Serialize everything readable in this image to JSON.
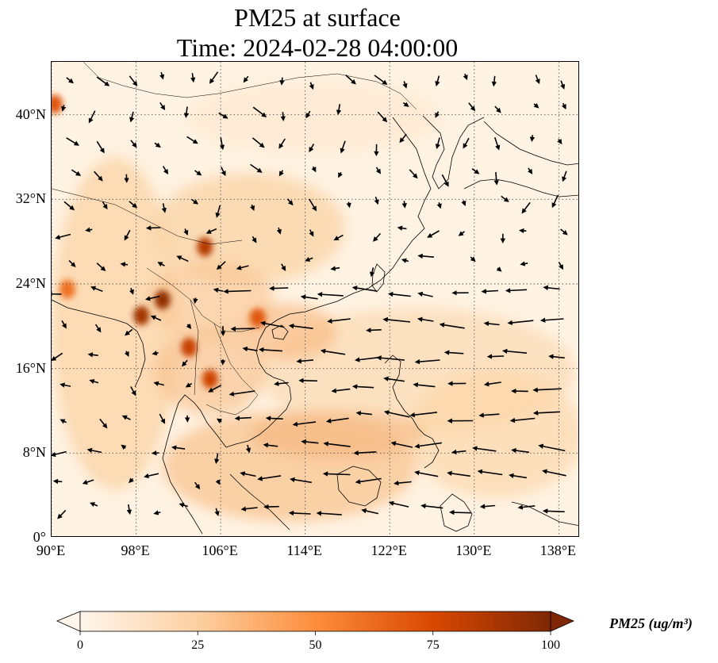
{
  "title": {
    "line1": "PM25 at surface",
    "line2": "Time: 2024-02-28 04:00:00"
  },
  "map": {
    "extent": {
      "lon_min": 90,
      "lon_max": 140,
      "lat_min": 0,
      "lat_max": 45
    },
    "lat_ticks": [
      {
        "value": 0,
        "label": "0°"
      },
      {
        "value": 8,
        "label": "8°N"
      },
      {
        "value": 16,
        "label": "16°N"
      },
      {
        "value": 24,
        "label": "24°N"
      },
      {
        "value": 32,
        "label": "32°N"
      },
      {
        "value": 40,
        "label": "40°N"
      }
    ],
    "lon_ticks": [
      {
        "value": 90,
        "label": "90°E"
      },
      {
        "value": 98,
        "label": "98°E"
      },
      {
        "value": 106,
        "label": "106°E"
      },
      {
        "value": 114,
        "label": "114°E"
      },
      {
        "value": 122,
        "label": "122°E"
      },
      {
        "value": 130,
        "label": "130°E"
      },
      {
        "value": 138,
        "label": "138°E"
      }
    ],
    "gridlines": "dotted",
    "colormap": [
      "#fff5eb",
      "#fdd0a2",
      "#fd8d3c",
      "#d94801",
      "#7f2704"
    ],
    "hotspots": [
      {
        "lon": 104.5,
        "lat": 27.5,
        "value": 85
      },
      {
        "lon": 100.5,
        "lat": 22.5,
        "value": 95
      },
      {
        "lon": 98.5,
        "lat": 21.0,
        "value": 90
      },
      {
        "lon": 103.0,
        "lat": 18.0,
        "value": 80
      },
      {
        "lon": 105.0,
        "lat": 15.0,
        "value": 78
      },
      {
        "lon": 90.3,
        "lat": 41.0,
        "value": 70
      },
      {
        "lon": 109.5,
        "lat": 20.8,
        "value": 70
      },
      {
        "lon": 91.5,
        "lat": 23.5,
        "value": 60
      }
    ],
    "wind_region": "wind vectors"
  },
  "colorbar": {
    "min": 0,
    "max": 100,
    "ticks": [
      {
        "value": 0,
        "label": "0"
      },
      {
        "value": 25,
        "label": "25"
      },
      {
        "value": 50,
        "label": "50"
      },
      {
        "value": 75,
        "label": "75"
      },
      {
        "value": 100,
        "label": "100"
      }
    ],
    "extend": "both",
    "label": "PM25 (ug/m³)"
  }
}
